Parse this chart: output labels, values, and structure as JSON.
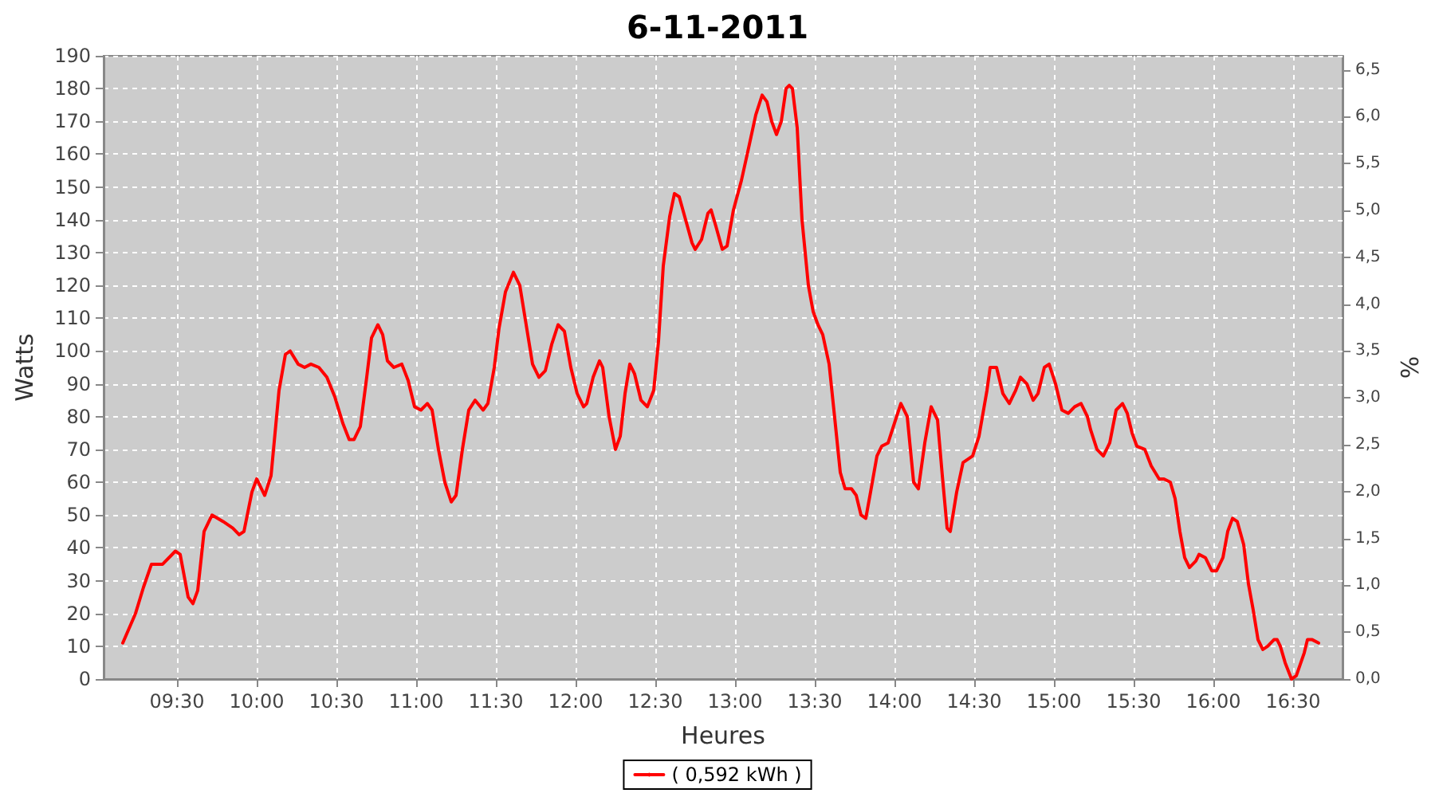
{
  "chart_data": {
    "type": "line",
    "title": "6-11-2011",
    "xlabel": "Heures",
    "ylabel": "Watts",
    "y2label": "%",
    "xlim": [
      9.04,
      16.81
    ],
    "xticks": [
      {
        "value": 9.5,
        "label": "09:30"
      },
      {
        "value": 10,
        "label": "10:00"
      },
      {
        "value": 10.5,
        "label": "10:30"
      },
      {
        "value": 11,
        "label": "11:00"
      },
      {
        "value": 11.5,
        "label": "11:30"
      },
      {
        "value": 12,
        "label": "12:00"
      },
      {
        "value": 12.5,
        "label": "12:30"
      },
      {
        "value": 13,
        "label": "13:00"
      },
      {
        "value": 13.5,
        "label": "13:30"
      },
      {
        "value": 14,
        "label": "14:00"
      },
      {
        "value": 14.5,
        "label": "14:30"
      },
      {
        "value": 15,
        "label": "15:00"
      },
      {
        "value": 15.5,
        "label": "15:30"
      },
      {
        "value": 16,
        "label": "16:00"
      },
      {
        "value": 16.5,
        "label": "16:30"
      }
    ],
    "ylim": [
      0,
      190
    ],
    "yticks": [
      0,
      10,
      20,
      30,
      40,
      50,
      60,
      70,
      80,
      90,
      100,
      110,
      120,
      130,
      140,
      150,
      160,
      170,
      180,
      190
    ],
    "y2lim": [
      0,
      6.65
    ],
    "y2ticks": [
      {
        "value": 0,
        "label": "0,0"
      },
      {
        "value": 0.5,
        "label": "0,5"
      },
      {
        "value": 1,
        "label": "1,0"
      },
      {
        "value": 1.5,
        "label": "1,5"
      },
      {
        "value": 2,
        "label": "2,0"
      },
      {
        "value": 2.5,
        "label": "2,5"
      },
      {
        "value": 3,
        "label": "3,0"
      },
      {
        "value": 3.5,
        "label": "3,5"
      },
      {
        "value": 4,
        "label": "4,0"
      },
      {
        "value": 4.5,
        "label": "4,5"
      },
      {
        "value": 5,
        "label": "5,0"
      },
      {
        "value": 5.5,
        "label": "5,5"
      },
      {
        "value": 6,
        "label": "6,0"
      },
      {
        "value": 6.5,
        "label": "6,5"
      }
    ],
    "grid": true,
    "legend": "bottom",
    "marker": "none",
    "line_style": "solid",
    "series": [
      {
        "name": "( 0,592 kWh )",
        "color": "#ff0000",
        "x": [
          9.16,
          9.24,
          9.29,
          9.34,
          9.41,
          9.49,
          9.52,
          9.57,
          9.6,
          9.63,
          9.67,
          9.72,
          9.79,
          9.85,
          9.89,
          9.92,
          9.97,
          10,
          10.05,
          10.09,
          10.14,
          10.18,
          10.21,
          10.26,
          10.3,
          10.34,
          10.39,
          10.44,
          10.49,
          10.54,
          10.58,
          10.61,
          10.65,
          10.69,
          10.72,
          10.76,
          10.79,
          10.82,
          10.86,
          10.91,
          10.95,
          10.99,
          11.03,
          11.07,
          11.1,
          11.14,
          11.18,
          11.22,
          11.25,
          11.29,
          11.33,
          11.37,
          11.42,
          11.45,
          11.49,
          11.52,
          11.56,
          11.61,
          11.65,
          11.69,
          11.73,
          11.77,
          11.81,
          11.85,
          11.89,
          11.93,
          11.97,
          12.01,
          12.05,
          12.07,
          12.11,
          12.15,
          12.17,
          12.21,
          12.25,
          12.28,
          12.31,
          12.34,
          12.37,
          12.41,
          12.45,
          12.49,
          12.52,
          12.55,
          12.59,
          12.62,
          12.65,
          12.69,
          12.73,
          12.75,
          12.79,
          12.83,
          12.85,
          12.88,
          12.92,
          12.95,
          12.99,
          13.04,
          13.09,
          13.13,
          13.17,
          13.2,
          13.23,
          13.26,
          13.29,
          13.32,
          13.34,
          13.36,
          13.39,
          13.42,
          13.46,
          13.49,
          13.52,
          13.55,
          13.59,
          13.62,
          13.66,
          13.69,
          13.73,
          13.76,
          13.79,
          13.82,
          13.85,
          13.89,
          13.92,
          13.96,
          14,
          14.04,
          14.08,
          14.12,
          14.15,
          14.19,
          14.23,
          14.27,
          14.3,
          14.33,
          14.35,
          14.39,
          14.43,
          14.49,
          14.53,
          14.58,
          14.6,
          14.64,
          14.68,
          14.72,
          14.76,
          14.79,
          14.83,
          14.87,
          14.9,
          14.94,
          14.97,
          15.01,
          15.05,
          15.09,
          15.13,
          15.17,
          15.21,
          15.23,
          15.27,
          15.31,
          15.35,
          15.39,
          15.43,
          15.46,
          15.49,
          15.52,
          15.57,
          15.61,
          15.66,
          15.69,
          15.73,
          15.76,
          15.79,
          15.82,
          15.85,
          15.89,
          15.91,
          15.95,
          15.99,
          16.02,
          16.06,
          16.09,
          16.12,
          16.15,
          16.19,
          16.22,
          16.25,
          16.28,
          16.31,
          16.34,
          16.38,
          16.4,
          16.42,
          16.45,
          16.49,
          16.52,
          16.57,
          16.59,
          16.62,
          16.66
        ],
        "values": [
          11,
          20,
          28,
          35,
          35,
          39,
          38,
          25,
          23,
          27,
          45,
          50,
          48,
          46,
          44,
          45,
          57,
          61,
          56,
          62,
          88,
          99,
          100,
          96,
          95,
          96,
          95,
          92,
          86,
          78,
          73,
          73,
          77,
          92,
          104,
          108,
          105,
          97,
          95,
          96,
          91,
          83,
          82,
          84,
          82,
          70,
          60,
          54,
          56,
          70,
          82,
          85,
          82,
          84,
          95,
          107,
          118,
          124,
          120,
          108,
          96,
          92,
          94,
          102,
          108,
          106,
          95,
          87,
          83,
          84,
          92,
          97,
          95,
          80,
          70,
          74,
          87,
          96,
          93,
          85,
          83,
          88,
          103,
          126,
          141,
          148,
          147,
          140,
          133,
          131,
          134,
          142,
          143,
          138,
          131,
          132,
          143,
          152,
          163,
          172,
          178,
          176,
          170,
          166,
          170,
          180,
          181,
          180,
          168,
          140,
          120,
          112,
          108,
          105,
          96,
          82,
          63,
          58,
          58,
          56,
          50,
          49,
          57,
          68,
          71,
          72,
          78,
          84,
          80,
          60,
          58,
          72,
          83,
          79,
          62,
          46,
          45,
          57,
          66,
          68,
          74,
          88,
          95,
          95,
          87,
          84,
          88,
          92,
          90,
          85,
          87,
          95,
          96,
          90,
          82,
          81,
          83,
          84,
          80,
          76,
          70,
          68,
          72,
          82,
          84,
          81,
          75,
          71,
          70,
          65,
          61,
          61,
          60,
          55,
          45,
          37,
          34,
          36,
          38,
          37,
          33,
          33,
          37,
          45,
          49,
          48,
          41,
          29,
          21,
          12,
          9,
          10,
          12,
          12,
          10,
          5,
          0,
          1,
          8,
          12,
          12,
          11
        ]
      }
    ]
  }
}
